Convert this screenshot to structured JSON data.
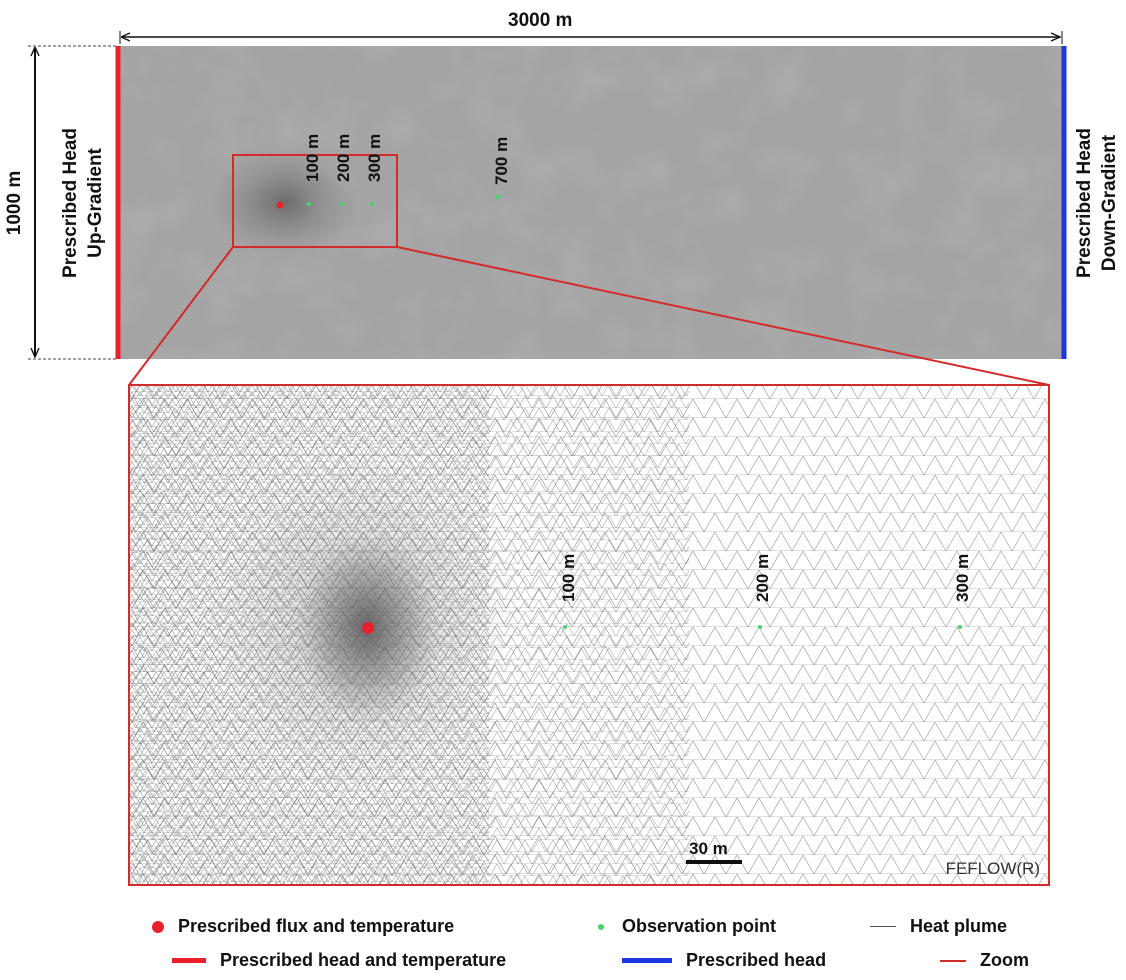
{
  "figure": {
    "width_label": "3000 m",
    "height_label": "1000 m",
    "left_boundary": {
      "line1": "Prescribed Head",
      "line2": "Up-Gradient"
    },
    "right_boundary": {
      "line1": "Prescribed Head",
      "line2": "Down-Gradient"
    },
    "top_observation_labels": [
      "100 m",
      "200 m",
      "300 m",
      "700 m"
    ],
    "zoom_observation_labels": [
      "100 m",
      "200 m",
      "300 m"
    ],
    "scale_bar_label": "30 m",
    "software_label": "FEFLOW(R)"
  },
  "legend": {
    "source": "Prescribed flux and temperature",
    "observation": "Observation point",
    "plume": "Heat plume",
    "head_temp": "Prescribed head and temperature",
    "head": "Prescribed head",
    "zoom": "Zoom"
  },
  "colors": {
    "red": "#e8202a",
    "blue": "#1d36e0",
    "green": "#44d56a",
    "mesh_bg": "#a9a9a9",
    "zoom_frame": "#d42a2a"
  }
}
